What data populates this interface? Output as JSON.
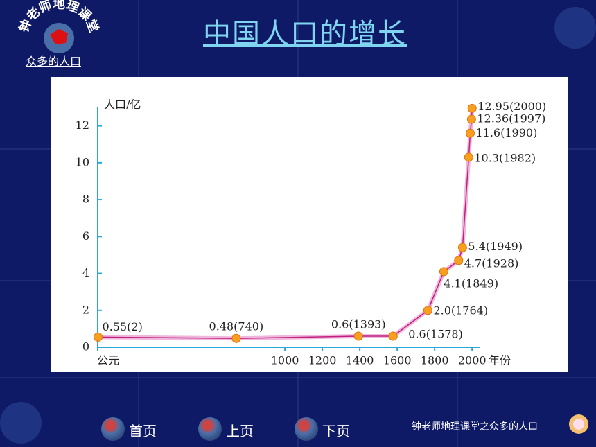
{
  "header": {
    "logo_text": "钟老师地理课堂",
    "subtitle": "众多的人口",
    "title": "中国人口的增长"
  },
  "chart_data": {
    "type": "line",
    "y_label": "人口/亿",
    "x_label": "年份",
    "x": [
      2,
      740,
      1393,
      1578,
      1764,
      1849,
      1928,
      1949,
      1982,
      1990,
      1997,
      2000
    ],
    "series": [
      {
        "color": "#e070b8",
        "values": [
          0.55,
          0.48,
          0.6,
          0.6,
          2.0,
          4.1,
          4.7,
          5.4,
          10.3,
          11.6,
          12.36,
          12.95
        ],
        "value_labels": [
          "0.55(2)",
          "0.48(740)",
          "0.6(1393)",
          "0.6(1578)",
          "2.0(1764)",
          "4.1(1849)",
          "4.7(1928)",
          "5.4(1949)",
          "10.3(1982)",
          "11.6(1990)",
          "12.36(1997)",
          "12.95(2000)"
        ]
      }
    ],
    "xlim": [
      0,
      2040
    ],
    "xticks": [
      {
        "value": 0,
        "label": "公元"
      },
      1000,
      1200,
      1400,
      1600,
      1800,
      2000
    ],
    "ylim": [
      0,
      13
    ],
    "yticks": [
      0,
      2,
      4,
      6,
      8,
      10,
      12
    ],
    "grid": false
  },
  "nav": {
    "buttons": [
      "首页",
      "上页",
      "下页"
    ]
  },
  "footer": {
    "text": "钟老师地理课堂之众多的人口"
  }
}
